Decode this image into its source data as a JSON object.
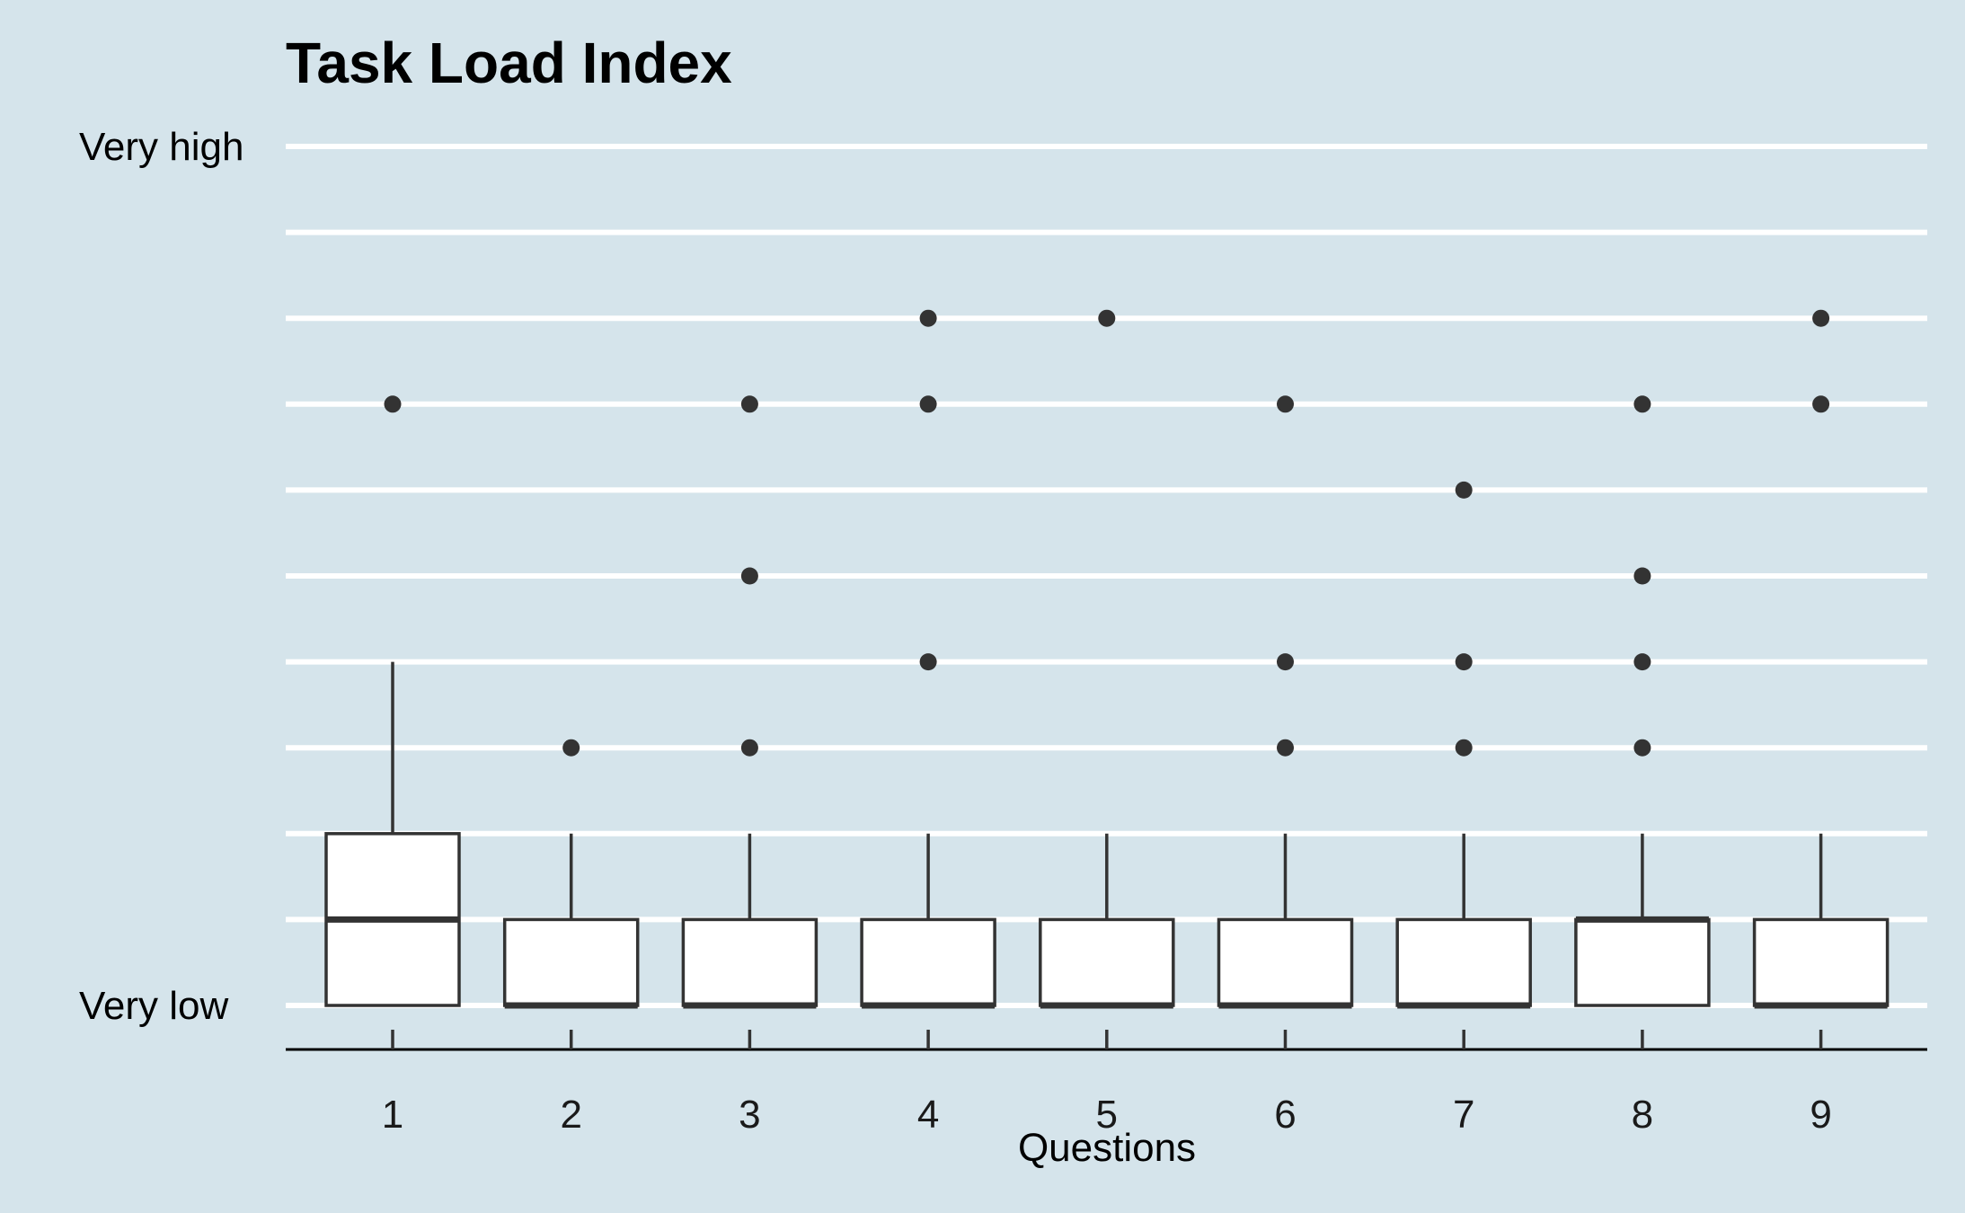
{
  "colors": {
    "background": "#d5e4eb",
    "gridline": "#ffffff",
    "box_fill": "#ffffff",
    "box_stroke": "#333333",
    "outlier": "#333333",
    "axis": "#000000"
  },
  "chart_data": {
    "type": "boxplot",
    "title": "Task Load Index",
    "xlabel": "Questions",
    "ylabel": "",
    "categories": [
      "1",
      "2",
      "3",
      "4",
      "5",
      "6",
      "7",
      "8",
      "9"
    ],
    "y_tick_labels": [
      {
        "value": 1,
        "label": "Very low"
      },
      {
        "value": 11,
        "label": "Very high"
      }
    ],
    "ylim": [
      1,
      11
    ],
    "grid": "horizontal",
    "boxes": [
      {
        "category": "1",
        "lower_whisker": 1,
        "q1": 1,
        "median": 2,
        "q3": 3,
        "upper_whisker": 5,
        "outliers": [
          8
        ]
      },
      {
        "category": "2",
        "lower_whisker": 1,
        "q1": 1,
        "median": 1,
        "q3": 2,
        "upper_whisker": 3,
        "outliers": [
          4
        ]
      },
      {
        "category": "3",
        "lower_whisker": 1,
        "q1": 1,
        "median": 1,
        "q3": 2,
        "upper_whisker": 3,
        "outliers": [
          4,
          6,
          8
        ]
      },
      {
        "category": "4",
        "lower_whisker": 1,
        "q1": 1,
        "median": 1,
        "q3": 2,
        "upper_whisker": 3,
        "outliers": [
          5,
          8,
          9
        ]
      },
      {
        "category": "5",
        "lower_whisker": 1,
        "q1": 1,
        "median": 1,
        "q3": 2,
        "upper_whisker": 3,
        "outliers": [
          9
        ]
      },
      {
        "category": "6",
        "lower_whisker": 1,
        "q1": 1,
        "median": 1,
        "q3": 2,
        "upper_whisker": 3,
        "outliers": [
          4,
          5,
          8
        ]
      },
      {
        "category": "7",
        "lower_whisker": 1,
        "q1": 1,
        "median": 1,
        "q3": 2,
        "upper_whisker": 3,
        "outliers": [
          4,
          5,
          7
        ]
      },
      {
        "category": "8",
        "lower_whisker": 1,
        "q1": 1,
        "median": 2,
        "q3": 2,
        "upper_whisker": 3,
        "outliers": [
          4,
          5,
          6,
          8
        ]
      },
      {
        "category": "9",
        "lower_whisker": 1,
        "q1": 1,
        "median": 1,
        "q3": 2,
        "upper_whisker": 3,
        "outliers": [
          8,
          9
        ]
      }
    ]
  }
}
